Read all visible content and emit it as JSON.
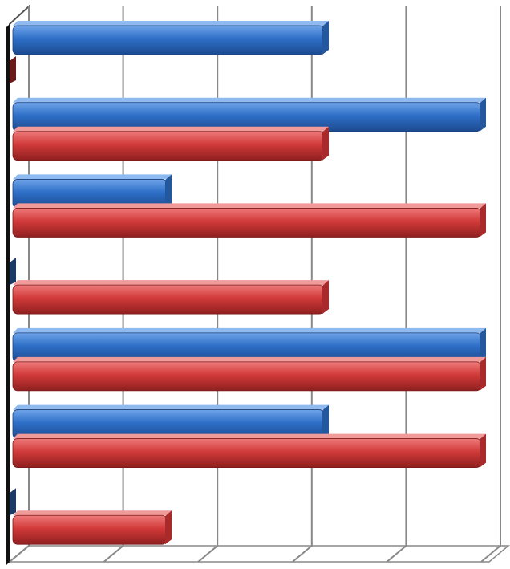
{
  "chart_data": {
    "type": "bar",
    "orientation": "horizontal",
    "categories": [
      null,
      null,
      null,
      null,
      null,
      null,
      null
    ],
    "series": [
      {
        "color": "#2e6fc7",
        "values": [
          2,
          3,
          1,
          0,
          3,
          2,
          0
        ]
      },
      {
        "color": "#d23a3a",
        "values": [
          0,
          2,
          3,
          2,
          3,
          3,
          1
        ]
      }
    ],
    "xlim": [
      0,
      3
    ],
    "xticks": [
      0,
      0.6,
      1.2,
      1.8,
      2.4,
      3
    ],
    "grid": true
  }
}
